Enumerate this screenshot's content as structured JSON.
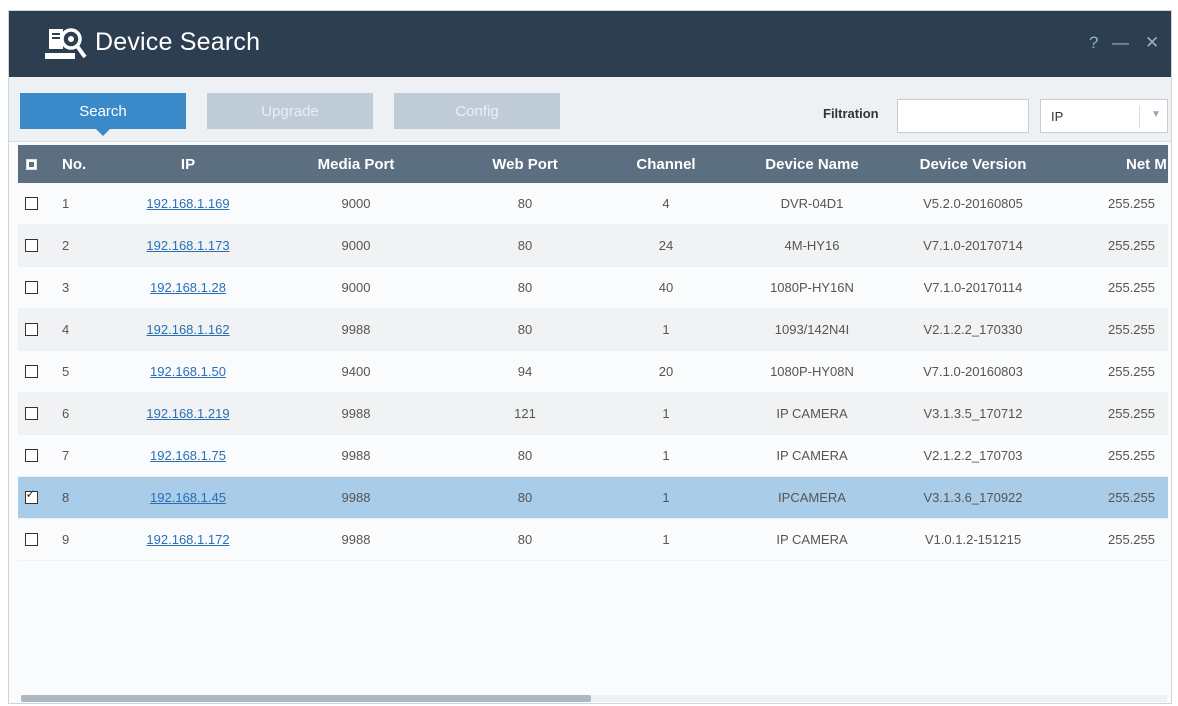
{
  "window": {
    "title": "Device Search",
    "help_glyph": "?",
    "minimize_glyph": "—",
    "close_glyph": "✕",
    "logo_icon": "device-search-logo-icon",
    "title_bg": "#2d3e50"
  },
  "toolbar": {
    "search_label": "Search",
    "upgrade_label": "Upgrade",
    "config_label": "Config",
    "filtration_label": "Filtration",
    "filter_value": "",
    "filter_select_value": "IP",
    "accent": "#3a89c9"
  },
  "table": {
    "columns": [
      "No.",
      "IP",
      "Media Port",
      "Web Port",
      "Channel",
      "Device Name",
      "Device Version",
      "Net M"
    ],
    "rows": [
      {
        "no": "1",
        "ip": "192.168.1.169",
        "media_port": "9000",
        "web_port": "80",
        "channel": "4",
        "device_name": "DVR-04D1",
        "device_version": "V5.2.0-20160805",
        "net_mask": "255.255",
        "checked": false
      },
      {
        "no": "2",
        "ip": "192.168.1.173",
        "media_port": "9000",
        "web_port": "80",
        "channel": "24",
        "device_name": "4M-HY16",
        "device_version": "V7.1.0-20170714",
        "net_mask": "255.255",
        "checked": false
      },
      {
        "no": "3",
        "ip": "192.168.1.28",
        "media_port": "9000",
        "web_port": "80",
        "channel": "40",
        "device_name": "1080P-HY16N",
        "device_version": "V7.1.0-20170114",
        "net_mask": "255.255",
        "checked": false
      },
      {
        "no": "4",
        "ip": "192.168.1.162",
        "media_port": "9988",
        "web_port": "80",
        "channel": "1",
        "device_name": "1093/142N4I",
        "device_version": "V2.1.2.2_170330",
        "net_mask": "255.255",
        "checked": false
      },
      {
        "no": "5",
        "ip": "192.168.1.50",
        "media_port": "9400",
        "web_port": "94",
        "channel": "20",
        "device_name": "1080P-HY08N",
        "device_version": "V7.1.0-20160803",
        "net_mask": "255.255",
        "checked": false
      },
      {
        "no": "6",
        "ip": "192.168.1.219",
        "media_port": "9988",
        "web_port": "121",
        "channel": "1",
        "device_name": "IP CAMERA",
        "device_version": "V3.1.3.5_170712",
        "net_mask": "255.255",
        "checked": false
      },
      {
        "no": "7",
        "ip": "192.168.1.75",
        "media_port": "9988",
        "web_port": "80",
        "channel": "1",
        "device_name": "IP CAMERA",
        "device_version": "V2.1.2.2_170703",
        "net_mask": "255.255",
        "checked": false
      },
      {
        "no": "8",
        "ip": "192.168.1.45",
        "media_port": "9988",
        "web_port": "80",
        "channel": "1",
        "device_name": "IPCAMERA",
        "device_version": "V3.1.3.6_170922",
        "net_mask": "255.255",
        "checked": true
      },
      {
        "no": "9",
        "ip": "192.168.1.172",
        "media_port": "9988",
        "web_port": "80",
        "channel": "1",
        "device_name": "IP CAMERA",
        "device_version": "V1.0.1.2-151215",
        "net_mask": "255.255",
        "checked": false
      }
    ],
    "header_bg": "#5b6f80",
    "selected_bg": "#a9cce8"
  }
}
